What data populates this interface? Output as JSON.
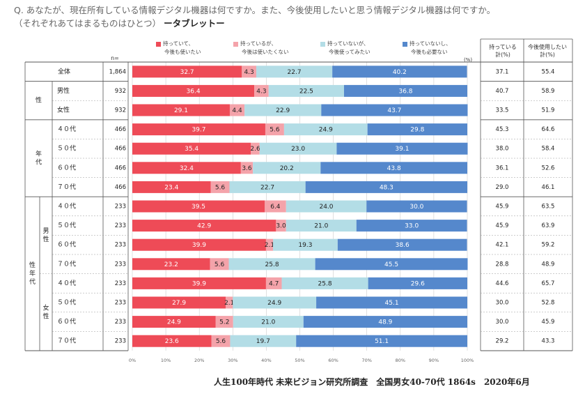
{
  "question_line1": "Q. あなたが、現在所有している情報デジタル機器は何ですか。また、今後使用したいと思う情報デジタル機器は何ですか。",
  "question_line2": "（それぞれあてはまるものはひとつ）",
  "question_item": "ータブレットー",
  "n_label": "n=",
  "percent_unit": "(%)",
  "col_owned_header": "持っている\n計(%)",
  "col_want_header": "今後使用したい\n計(%)",
  "footer": "人生100年時代 未来ビジョン研究所調査　全国男女40-70代 1864s　2020年6月",
  "colors": {
    "s1": "#ee4b57",
    "s2": "#f4a3aa",
    "s3": "#b3dde6",
    "s4": "#5588cc",
    "grid": "#cccccc",
    "border": "#888888"
  },
  "chart_data": {
    "type": "bar",
    "stacked": true,
    "orientation": "horizontal",
    "xlim": [
      0,
      100
    ],
    "xticks": [
      "0%",
      "10%",
      "20%",
      "30%",
      "40%",
      "50%",
      "60%",
      "70%",
      "80%",
      "90%",
      "100%"
    ],
    "legend": [
      {
        "line1": "持っていて、",
        "line2": "今後も使いたい"
      },
      {
        "line1": "持っているが、",
        "line2": "今後は使いたくない"
      },
      {
        "line1": "持っていないが、",
        "line2": "今後使ってみたい"
      },
      {
        "line1": "持っていないし、",
        "line2": "今後も必要ない"
      }
    ],
    "groups": [
      {
        "label": "",
        "rows": [
          0
        ]
      },
      {
        "label": "性",
        "rows": [
          1,
          2
        ]
      },
      {
        "label": "年\n代",
        "rows": [
          3,
          4,
          5,
          6
        ]
      },
      {
        "label": "性\n年\n代",
        "rows": [
          7,
          8,
          9,
          10,
          11,
          12,
          13,
          14
        ]
      }
    ],
    "subgroups": [
      {
        "label": "男\n性",
        "rows": [
          7,
          8,
          9,
          10
        ]
      },
      {
        "label": "女\n性",
        "rows": [
          11,
          12,
          13,
          14
        ]
      }
    ],
    "rows": [
      {
        "label": "全体",
        "n": "1,864",
        "values": [
          32.7,
          4.3,
          22.7,
          40.2
        ],
        "owned": "37.1",
        "want": "55.4"
      },
      {
        "label": "男性",
        "n": "932",
        "values": [
          36.4,
          4.3,
          22.5,
          36.8
        ],
        "owned": "40.7",
        "want": "58.9"
      },
      {
        "label": "女性",
        "n": "932",
        "values": [
          29.1,
          4.4,
          22.9,
          43.7
        ],
        "owned": "33.5",
        "want": "51.9"
      },
      {
        "label": "４０代",
        "n": "466",
        "values": [
          39.7,
          5.6,
          24.9,
          29.8
        ],
        "owned": "45.3",
        "want": "64.6"
      },
      {
        "label": "５０代",
        "n": "466",
        "values": [
          35.4,
          2.6,
          23.0,
          39.1
        ],
        "owned": "38.0",
        "want": "58.4"
      },
      {
        "label": "６０代",
        "n": "466",
        "values": [
          32.4,
          3.6,
          20.2,
          43.8
        ],
        "owned": "36.1",
        "want": "52.6"
      },
      {
        "label": "７０代",
        "n": "466",
        "values": [
          23.4,
          5.6,
          22.7,
          48.3
        ],
        "owned": "29.0",
        "want": "46.1"
      },
      {
        "label": "４０代",
        "n": "233",
        "values": [
          39.5,
          6.4,
          24.0,
          30.0
        ],
        "owned": "45.9",
        "want": "63.5"
      },
      {
        "label": "５０代",
        "n": "233",
        "values": [
          42.9,
          3.0,
          21.0,
          33.0
        ],
        "owned": "45.9",
        "want": "63.9"
      },
      {
        "label": "６０代",
        "n": "233",
        "values": [
          39.9,
          2.1,
          19.3,
          38.6
        ],
        "owned": "42.1",
        "want": "59.2"
      },
      {
        "label": "７０代",
        "n": "233",
        "values": [
          23.2,
          5.6,
          25.8,
          45.5
        ],
        "owned": "28.8",
        "want": "48.9"
      },
      {
        "label": "４０代",
        "n": "233",
        "values": [
          39.9,
          4.7,
          25.8,
          29.6
        ],
        "owned": "44.6",
        "want": "65.7"
      },
      {
        "label": "５０代",
        "n": "233",
        "values": [
          27.9,
          2.1,
          24.9,
          45.1
        ],
        "owned": "30.0",
        "want": "52.8"
      },
      {
        "label": "６０代",
        "n": "233",
        "values": [
          24.9,
          5.2,
          21.0,
          48.9
        ],
        "owned": "30.0",
        "want": "45.9"
      },
      {
        "label": "７０代",
        "n": "233",
        "values": [
          23.6,
          5.6,
          19.7,
          51.1
        ],
        "owned": "29.2",
        "want": "43.3"
      }
    ]
  }
}
